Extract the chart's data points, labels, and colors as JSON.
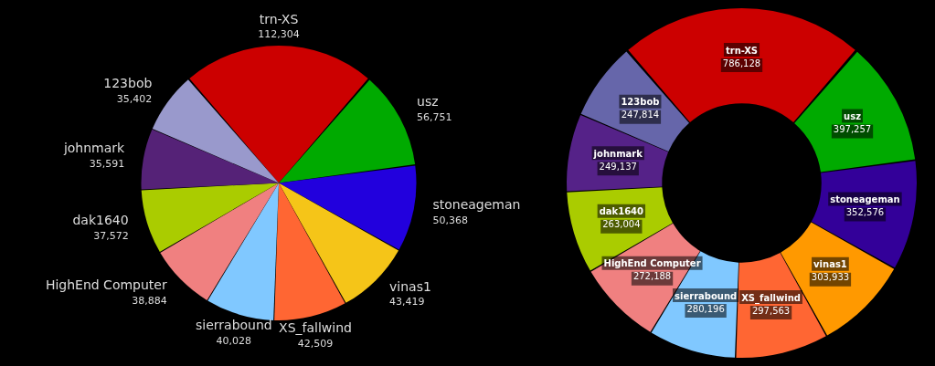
{
  "chart_data": [
    {
      "type": "pie",
      "categories": [
        "trn-XS",
        "usz",
        "stoneageman",
        "vinas1",
        "XS_fallwind",
        "sierrabound",
        "HighEnd Computer",
        "dak1640",
        "johnmark",
        "123bob"
      ],
      "values": [
        112304,
        56751,
        50368,
        43419,
        42509,
        40028,
        38884,
        37572,
        35591,
        35402
      ],
      "colors": [
        "#cc0000",
        "#00aa00",
        "#2200dd",
        "#f5c518",
        "#ff6633",
        "#80c8ff",
        "#f08080",
        "#aacc00",
        "#552277",
        "#9999cc"
      ],
      "value_labels": [
        "112,304",
        "56,751",
        "50,368",
        "43,419",
        "42,509",
        "40,028",
        "38,884",
        "37,572",
        "35,591",
        "35,402"
      ]
    },
    {
      "type": "donut",
      "categories": [
        "trn-XS",
        "usz",
        "stoneageman",
        "vinas1",
        "XS_fallwind",
        "sierrabound",
        "HighEnd Computer",
        "dak1640",
        "johnmark",
        "123bob"
      ],
      "values": [
        786128,
        397257,
        352576,
        303933,
        297563,
        280196,
        272188,
        263004,
        249137,
        247814
      ],
      "colors": [
        "#cc0000",
        "#00aa00",
        "#330099",
        "#ff9900",
        "#ff6633",
        "#80c8ff",
        "#f08080",
        "#aacc00",
        "#552288",
        "#6666aa"
      ],
      "value_labels": [
        "786,128",
        "397,257",
        "352,576",
        "303,933",
        "297,563",
        "280,196",
        "272,188",
        "263,004",
        "249,137",
        "247,814"
      ]
    }
  ]
}
